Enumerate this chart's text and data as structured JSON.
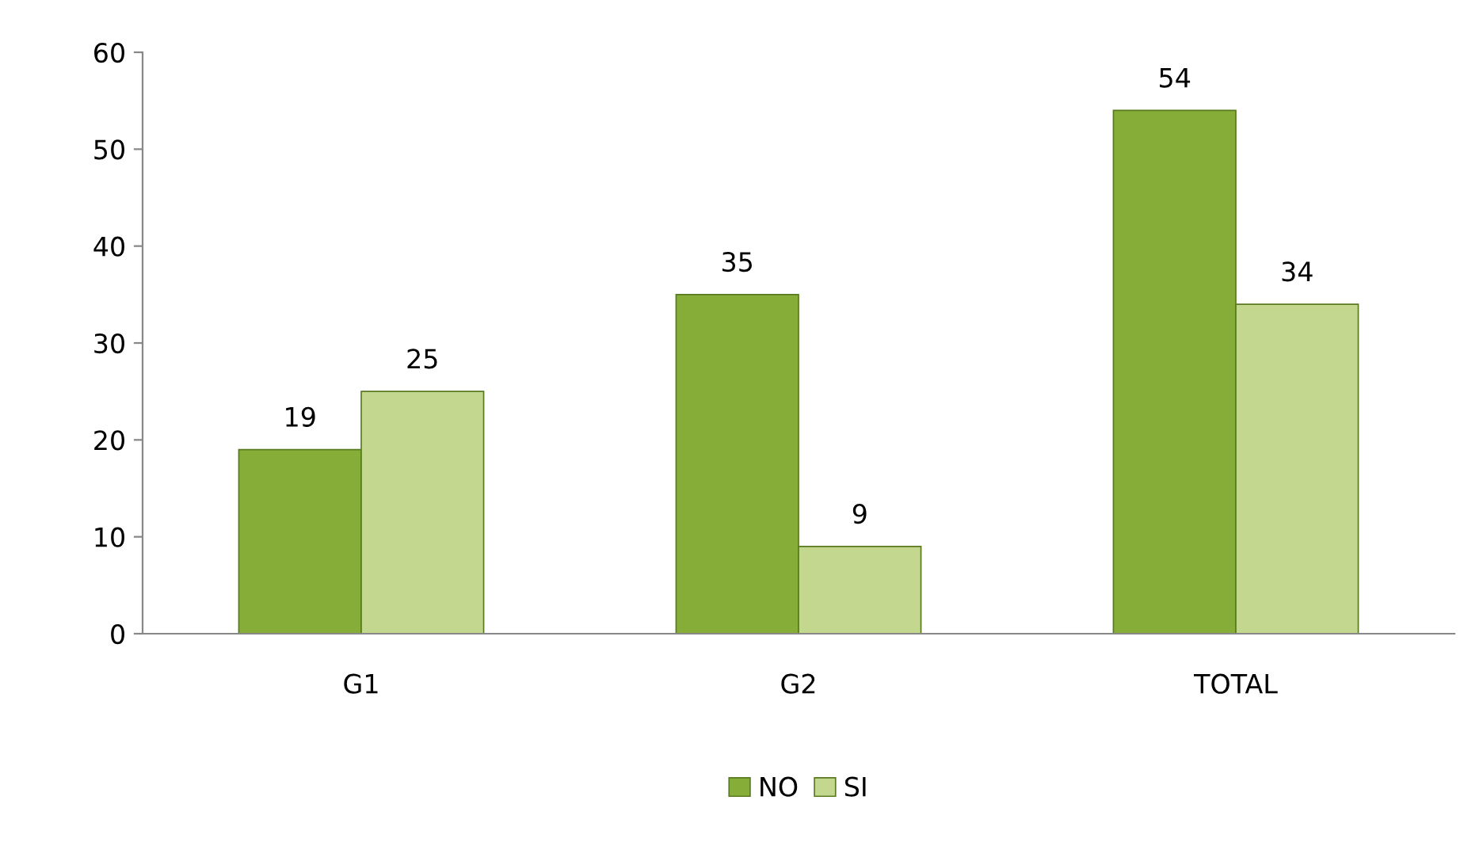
{
  "chart_data": {
    "type": "bar",
    "categories": [
      "G1",
      "G2",
      "TOTAL"
    ],
    "series": [
      {
        "name": "NO",
        "color": "#86ad38",
        "values": [
          19,
          35,
          54
        ]
      },
      {
        "name": "SI",
        "color": "#c3d88e",
        "values": [
          25,
          9,
          34
        ]
      }
    ],
    "ylim": [
      0,
      60
    ],
    "yticks": [
      0,
      10,
      20,
      30,
      40,
      50,
      60
    ],
    "data_labels": true,
    "legend": "bottom",
    "grid": false
  }
}
